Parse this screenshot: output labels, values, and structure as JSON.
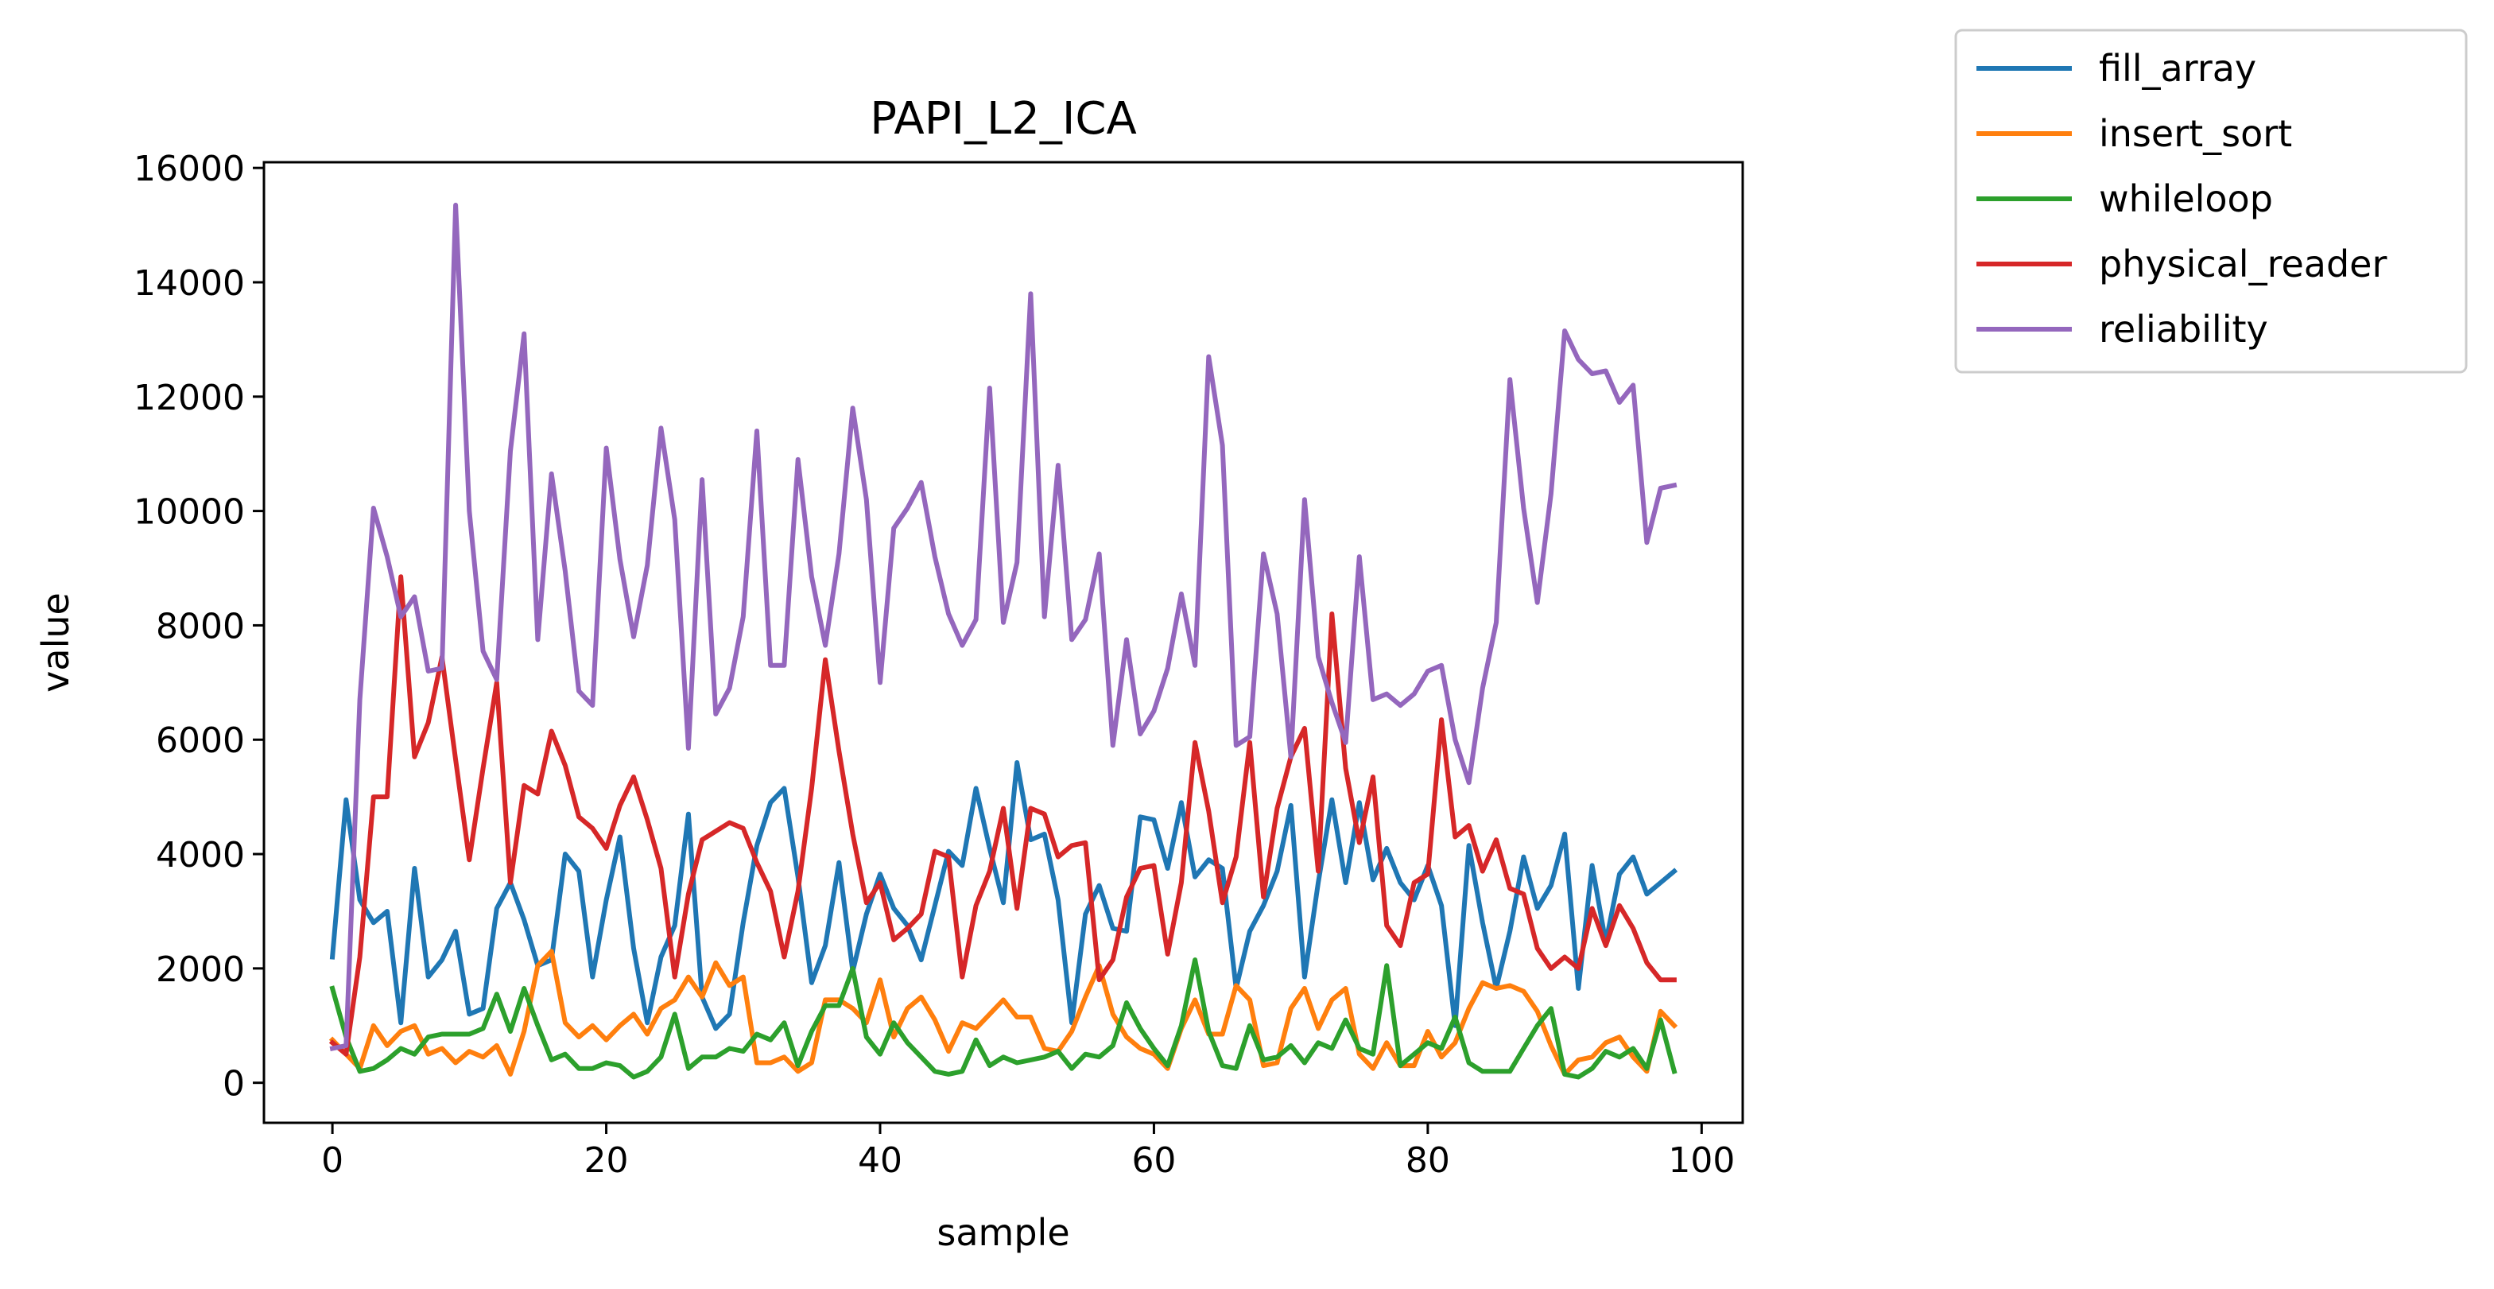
{
  "chart_data": {
    "type": "line",
    "title": "PAPI_L2_ICA",
    "xlabel": "sample",
    "ylabel": "value",
    "xlim": [
      -5.0,
      103.0
    ],
    "ylim": [
      -700,
      16100
    ],
    "xticks": [
      0,
      20,
      40,
      60,
      80,
      100
    ],
    "yticks": [
      0,
      2000,
      4000,
      6000,
      8000,
      10000,
      12000,
      14000,
      16000
    ],
    "grid": false,
    "legend_position": "outside-top-right",
    "x": [
      0,
      1,
      2,
      3,
      4,
      5,
      6,
      7,
      8,
      9,
      10,
      11,
      12,
      13,
      14,
      15,
      16,
      17,
      18,
      19,
      20,
      21,
      22,
      23,
      24,
      25,
      26,
      27,
      28,
      29,
      30,
      31,
      32,
      33,
      34,
      35,
      36,
      37,
      38,
      39,
      40,
      41,
      42,
      43,
      44,
      45,
      46,
      47,
      48,
      49,
      50,
      51,
      52,
      53,
      54,
      55,
      56,
      57,
      58,
      59,
      60,
      61,
      62,
      63,
      64,
      65,
      66,
      67,
      68,
      69,
      70,
      71,
      72,
      73,
      74,
      75,
      76,
      77,
      78,
      79,
      80,
      81,
      82,
      83,
      84,
      85,
      86,
      87,
      88,
      89,
      90,
      91,
      92,
      93,
      94,
      95,
      96,
      97,
      98
    ],
    "series": [
      {
        "name": "fill_array",
        "color": "#1f77b4",
        "values": [
          2200,
          4950,
          3200,
          2800,
          3000,
          1050,
          3750,
          1850,
          2150,
          2650,
          1200,
          1300,
          3050,
          3500,
          2850,
          2050,
          2150,
          4000,
          3700,
          1850,
          3200,
          4300,
          2350,
          1050,
          2200,
          2750,
          4700,
          1500,
          950,
          1200,
          2800,
          4150,
          4900,
          5150,
          3600,
          1750,
          2400,
          3850,
          1950,
          2950,
          3650,
          3050,
          2750,
          2150,
          3100,
          4050,
          3800,
          5150,
          4100,
          3150,
          5600,
          4250,
          4350,
          3200,
          1050,
          2950,
          3450,
          2700,
          2650,
          4650,
          4600,
          3750,
          4900,
          3600,
          3900,
          3750,
          1650,
          2650,
          3100,
          3700,
          4850,
          1850,
          3500,
          4950,
          3500,
          4900,
          3550,
          4100,
          3500,
          3200,
          3800,
          3100,
          1000,
          4150,
          2800,
          1650,
          2650,
          3950,
          3050,
          3450,
          4350,
          1650,
          3800,
          2450,
          3650,
          3950,
          3300,
          3500,
          3700
        ]
      },
      {
        "name": "insert_sort",
        "color": "#ff7f0e",
        "values": [
          750,
          500,
          250,
          1000,
          650,
          900,
          1000,
          500,
          600,
          350,
          550,
          450,
          650,
          150,
          900,
          2050,
          2300,
          1050,
          800,
          1000,
          750,
          1000,
          1200,
          850,
          1300,
          1450,
          1850,
          1500,
          2100,
          1700,
          1850,
          350,
          350,
          450,
          200,
          350,
          1450,
          1450,
          1300,
          1050,
          1800,
          800,
          1300,
          1500,
          1100,
          550,
          1050,
          950,
          1200,
          1450,
          1150,
          1150,
          600,
          550,
          900,
          1500,
          2050,
          1200,
          800,
          600,
          500,
          250,
          950,
          1450,
          850,
          850,
          1700,
          1450,
          300,
          350,
          1300,
          1650,
          950,
          1450,
          1650,
          500,
          250,
          700,
          300,
          300,
          900,
          450,
          700,
          1300,
          1750,
          1650,
          1700,
          1600,
          1250,
          650,
          150,
          400,
          450,
          700,
          800,
          450,
          200,
          1250,
          1000
        ]
      },
      {
        "name": "whileloop",
        "color": "#2ca02c",
        "values": [
          1650,
          800,
          200,
          250,
          400,
          600,
          500,
          800,
          850,
          850,
          850,
          950,
          1550,
          900,
          1650,
          1000,
          400,
          500,
          250,
          250,
          350,
          300,
          100,
          200,
          450,
          1200,
          250,
          450,
          450,
          600,
          550,
          850,
          750,
          1050,
          300,
          900,
          1350,
          1350,
          2000,
          800,
          500,
          1050,
          700,
          450,
          200,
          150,
          200,
          750,
          300,
          450,
          350,
          400,
          450,
          550,
          250,
          500,
          450,
          650,
          1400,
          950,
          600,
          300,
          1000,
          2150,
          900,
          300,
          250,
          1000,
          400,
          450,
          650,
          350,
          700,
          600,
          1100,
          600,
          500,
          2050,
          300,
          500,
          700,
          600,
          1150,
          350,
          200,
          200,
          200,
          600,
          1000,
          1300,
          150,
          100,
          250,
          550,
          450,
          600,
          250,
          1100,
          200
        ]
      },
      {
        "name": "physical_reader",
        "color": "#d62728",
        "values": [
          700,
          500,
          2200,
          5000,
          5000,
          8850,
          5700,
          6300,
          7450,
          5650,
          3900,
          5500,
          7000,
          3500,
          5200,
          5050,
          6150,
          5550,
          4650,
          4450,
          4100,
          4850,
          5350,
          4600,
          3750,
          1850,
          3300,
          4250,
          4400,
          4550,
          4450,
          3850,
          3350,
          2200,
          3350,
          5150,
          7400,
          5800,
          4350,
          3150,
          3500,
          2500,
          2700,
          2950,
          4050,
          3950,
          1850,
          3100,
          3700,
          4800,
          3050,
          4800,
          4700,
          3950,
          4150,
          4200,
          1800,
          2150,
          3250,
          3750,
          3800,
          2250,
          3500,
          5950,
          4750,
          3150,
          3950,
          5950,
          3250,
          4800,
          5700,
          6200,
          3700,
          8200,
          5500,
          4200,
          5350,
          2750,
          2400,
          3500,
          3650,
          6350,
          4300,
          4500,
          3700,
          4250,
          3400,
          3300,
          2350,
          2000,
          2200,
          2000,
          3050,
          2400,
          3100,
          2700,
          2100,
          1800,
          1800
        ]
      },
      {
        "name": "reliability",
        "color": "#9467bd",
        "values": [
          600,
          650,
          6700,
          10050,
          9200,
          8150,
          8500,
          7200,
          7250,
          15350,
          10000,
          7550,
          7050,
          11050,
          13100,
          7750,
          10650,
          8950,
          6850,
          6600,
          11100,
          9150,
          7800,
          9050,
          11450,
          9850,
          5850,
          10550,
          6450,
          6900,
          8150,
          11400,
          7300,
          7300,
          10900,
          8850,
          7650,
          9250,
          11800,
          10200,
          7000,
          9700,
          10050,
          10500,
          9200,
          8200,
          7650,
          8100,
          12150,
          8050,
          9100,
          13800,
          8150,
          10800,
          7750,
          8100,
          9250,
          5900,
          7750,
          6100,
          6500,
          7250,
          8550,
          7300,
          12700,
          11150,
          5900,
          6050,
          9250,
          8200,
          5700,
          10200,
          7450,
          6650,
          5950,
          9200,
          6700,
          6800,
          6600,
          6800,
          7200,
          7300,
          6000,
          5250,
          6900,
          8050,
          12300,
          10050,
          8400,
          10300,
          13150,
          12650,
          12400,
          12450,
          11900,
          12200,
          9450,
          10400,
          10450
        ]
      }
    ]
  }
}
